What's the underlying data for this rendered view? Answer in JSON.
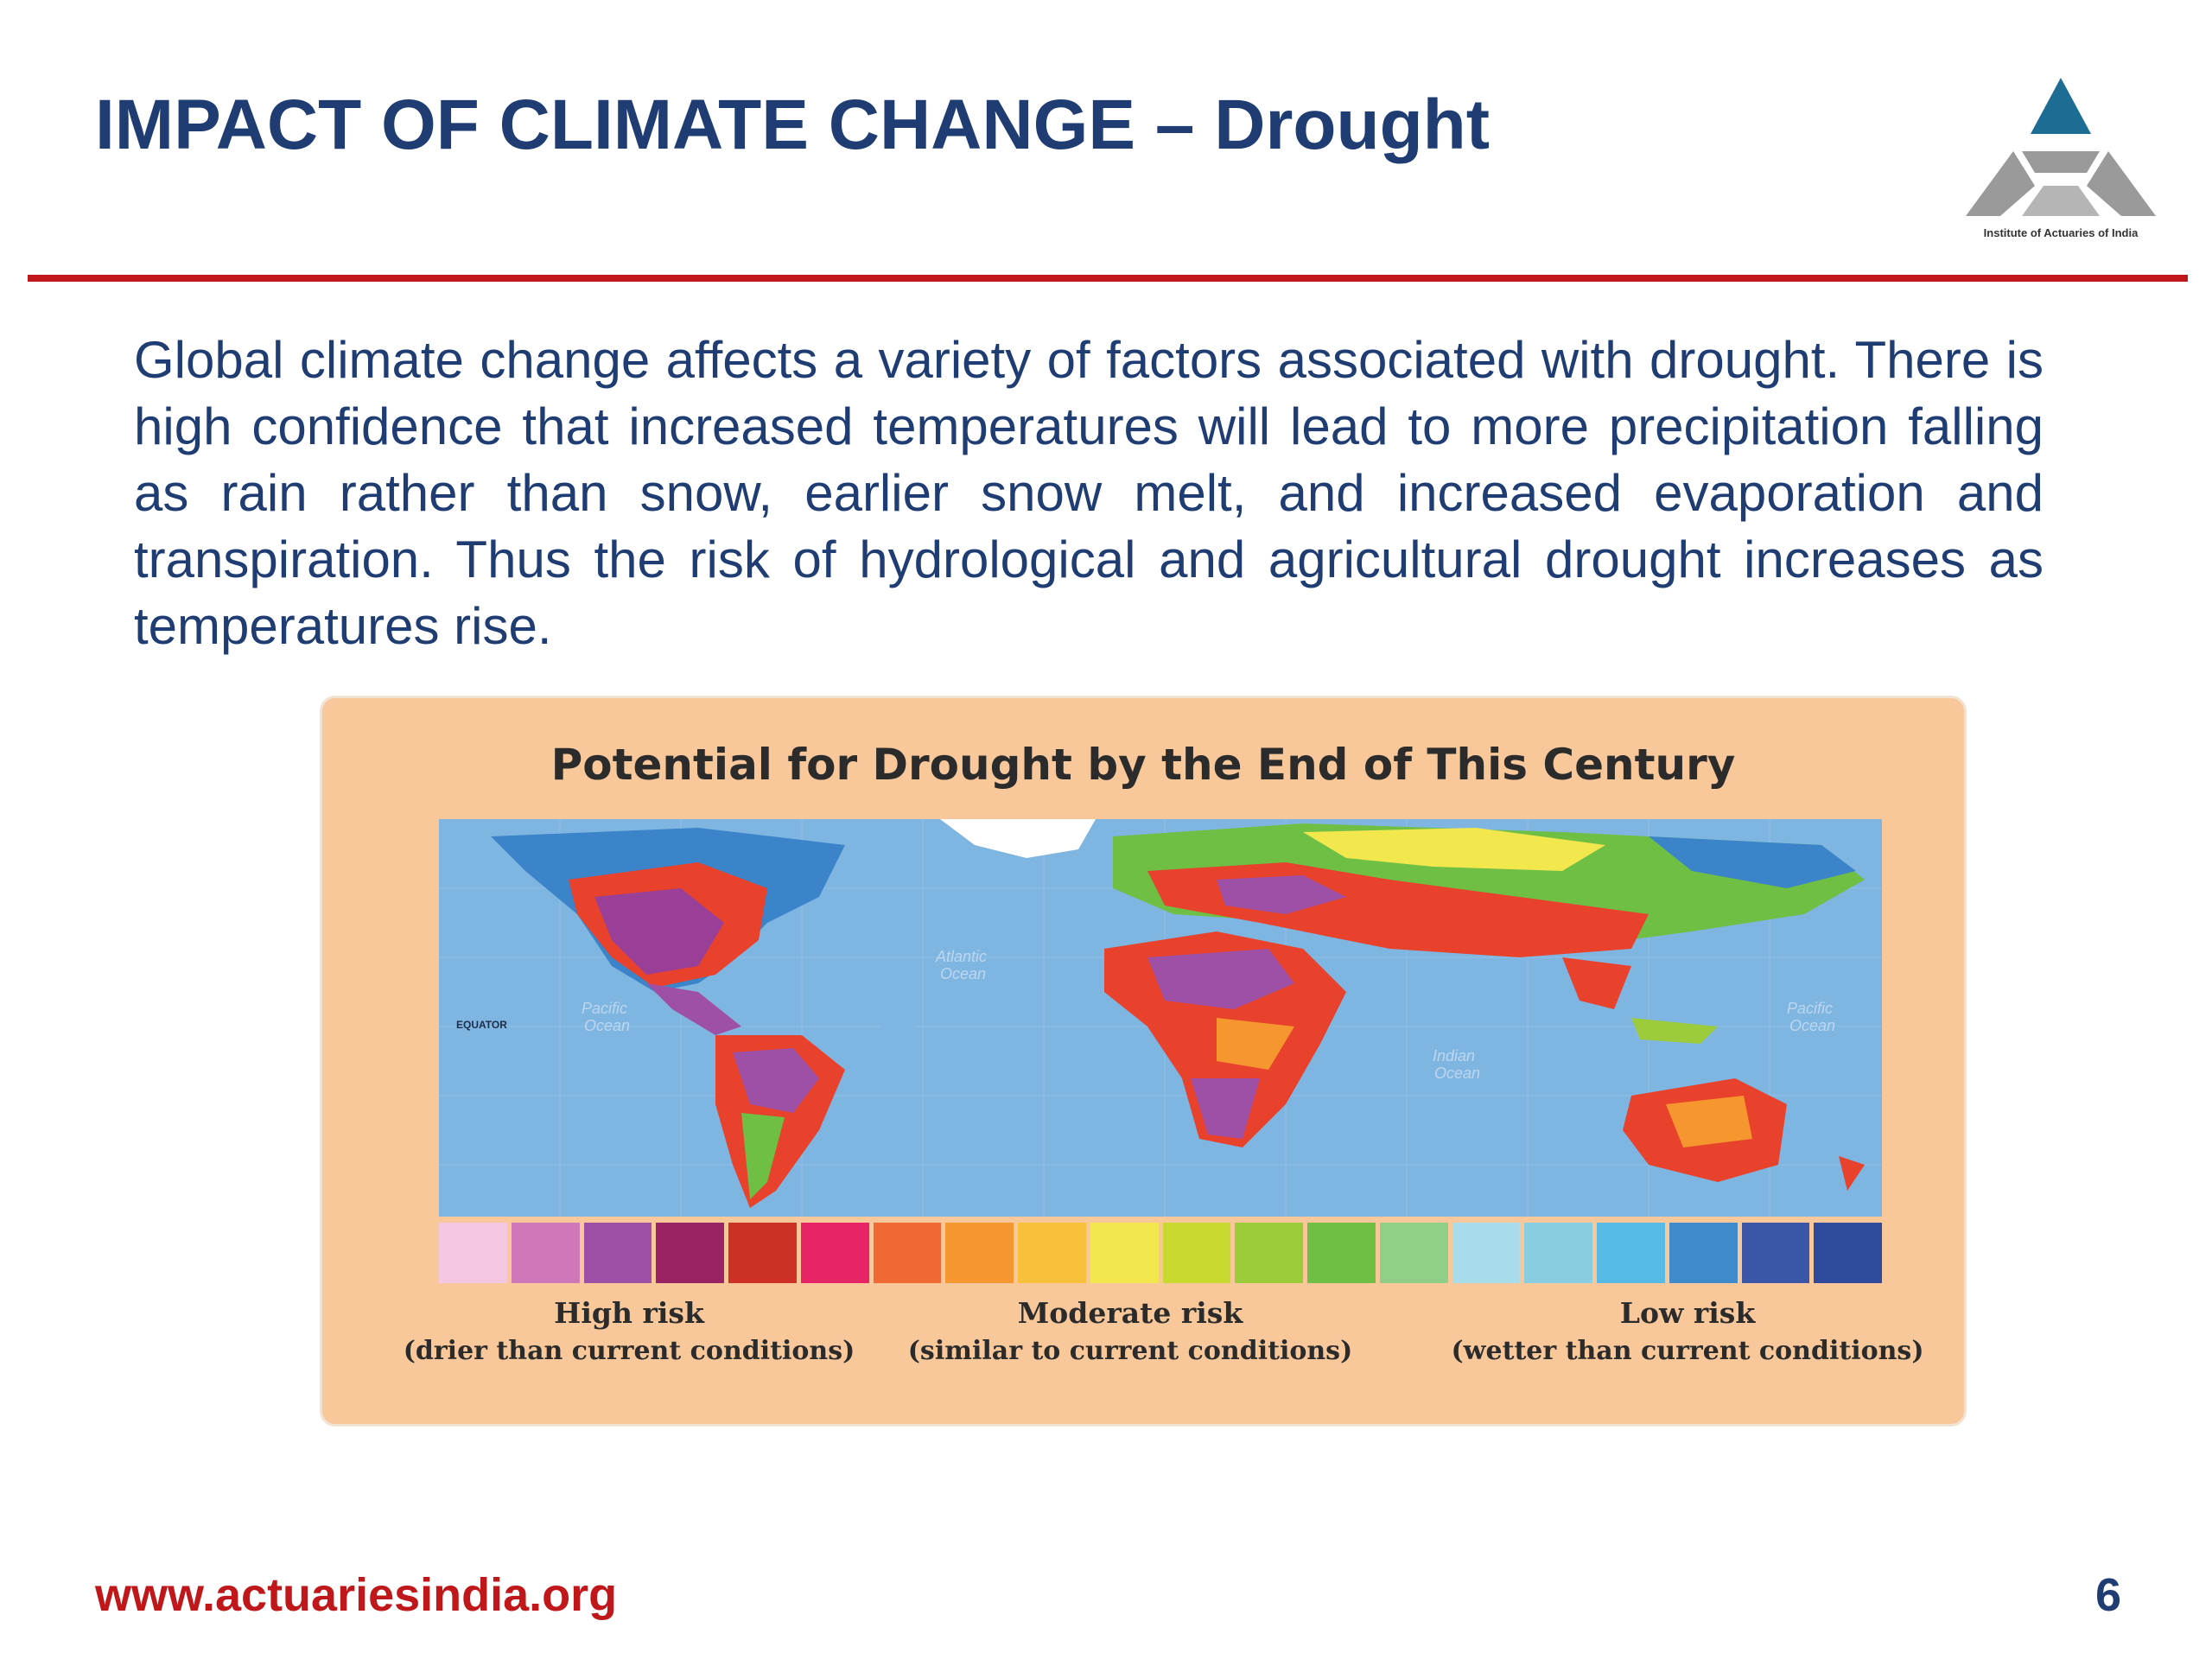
{
  "slide": {
    "title": "IMPACT OF CLIMATE CHANGE – Drought",
    "body": "Global climate change affects a variety of factors associated with drought. There is high confidence that increased temperatures will lead to more precipitation falling as rain rather than snow, earlier snow melt, and increased evaporation and transpiration. Thus the risk of hydrological and agricultural drought increases as temperatures rise.",
    "logo_caption": "Institute of Actuaries of India",
    "footer_url": "www.actuariesindia.org",
    "page_number": "6",
    "colors": {
      "title": "#1f3d73",
      "rule": "#c0171b",
      "footer": "#c0171b"
    }
  },
  "figure": {
    "title": "Potential for Drought by the End of This Century",
    "ocean_labels": {
      "atlantic": [
        "Atlantic",
        "Ocean"
      ],
      "pacific_left": [
        "Pacific",
        "Ocean"
      ],
      "pacific_right": [
        "Pacific",
        "Ocean"
      ],
      "indian": [
        "Indian",
        "Ocean"
      ],
      "equator": "EQUATOR"
    },
    "legend": {
      "colors": [
        "#f3c8e0",
        "#cf77b8",
        "#9e4fa6",
        "#9a2366",
        "#cc3026",
        "#e62466",
        "#ef6a33",
        "#f5962f",
        "#f8c13c",
        "#f3e74e",
        "#c8d92f",
        "#9ccb3b",
        "#6fbf45",
        "#8fcf86",
        "#a8dceb",
        "#89cde0",
        "#57bbe6",
        "#3f8bcb",
        "#3b56a6",
        "#304a9c"
      ],
      "groups": [
        {
          "title": "High risk",
          "subtitle": "(drier than current conditions)"
        },
        {
          "title": "Moderate risk",
          "subtitle": "(similar to current conditions)"
        },
        {
          "title": "Low risk",
          "subtitle": "(wetter than current conditions)"
        }
      ]
    }
  }
}
